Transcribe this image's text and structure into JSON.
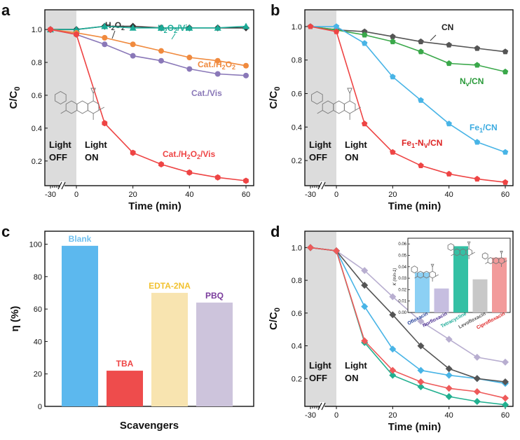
{
  "chart_data": [
    {
      "panel": "a",
      "type": "line",
      "xlabel": "Time (min)",
      "ylabel": "C/C0",
      "x_ticks": [
        "-30",
        "0",
        "20",
        "40",
        "60"
      ],
      "y_ticks": [
        "0.2",
        "0.4",
        "0.6",
        "0.8",
        "1.0"
      ],
      "ylim": [
        0.05,
        1.12
      ],
      "light_off": [
        "Light",
        "OFF"
      ],
      "light_on": [
        "Light",
        "ON"
      ],
      "x": [
        -30,
        0,
        10,
        20,
        30,
        40,
        50,
        60
      ],
      "series": [
        {
          "name": "H2O2",
          "label_main": "H",
          "label_sub": "2",
          "label_mid": "O",
          "label_sub2": "2",
          "label_tail": "",
          "color": "#333333",
          "marker": "diamond",
          "values": [
            1.0,
            1.0,
            1.02,
            1.02,
            1.01,
            1.01,
            1.01,
            1.01
          ]
        },
        {
          "name": "H2O2/Vis",
          "label_main": "H",
          "label_sub": "2",
          "label_mid": "O",
          "label_sub2": "2",
          "label_tail": "/Vis",
          "color": "#1aaa96",
          "marker": "triangle",
          "values": [
            1.0,
            1.0,
            1.02,
            1.01,
            1.01,
            1.01,
            1.01,
            1.02
          ]
        },
        {
          "name": "Cat./H2O2",
          "label_main": "Cat./H",
          "label_sub": "2",
          "label_mid": "O",
          "label_sub2": "2",
          "label_tail": "",
          "color": "#f08a3e",
          "marker": "circle",
          "values": [
            1.0,
            0.98,
            0.95,
            0.91,
            0.87,
            0.83,
            0.81,
            0.78
          ]
        },
        {
          "name": "Cat./Vis",
          "label_main": "Cat./Vis",
          "label_sub": "",
          "label_mid": "",
          "label_sub2": "",
          "label_tail": "",
          "color": "#8a78b8",
          "marker": "circle",
          "values": [
            1.0,
            0.97,
            0.91,
            0.84,
            0.81,
            0.76,
            0.73,
            0.72
          ]
        },
        {
          "name": "Cat./H2O2/Vis",
          "label_main": "Cat./H",
          "label_sub": "2",
          "label_mid": "O",
          "label_sub2": "2",
          "label_tail": "/Vis",
          "color": "#ee4444",
          "marker": "hexagon",
          "values": [
            1.0,
            0.97,
            0.43,
            0.25,
            0.18,
            0.13,
            0.1,
            0.08
          ]
        }
      ]
    },
    {
      "panel": "b",
      "type": "line",
      "xlabel": "Time (min)",
      "ylabel": "C/C0",
      "x_ticks": [
        "-30",
        "0",
        "20",
        "40",
        "60"
      ],
      "y_ticks": [
        "0.2",
        "0.4",
        "0.6",
        "0.8",
        "1.0"
      ],
      "ylim": [
        0.05,
        1.1
      ],
      "light_off": [
        "Light",
        "OFF"
      ],
      "light_on": [
        "Light",
        "ON"
      ],
      "x": [
        -30,
        0,
        10,
        20,
        30,
        40,
        50,
        60
      ],
      "series": [
        {
          "name": "CN",
          "label_main": "CN",
          "label_sub": "",
          "label_mid": "",
          "label_sub2": "",
          "label_tail": "",
          "color": "#555555",
          "marker": "pentagon",
          "values": [
            1.0,
            0.98,
            0.97,
            0.94,
            0.91,
            0.89,
            0.87,
            0.85
          ]
        },
        {
          "name": "NV/CN",
          "label_main": "N",
          "label_sub": "v",
          "label_mid": "/CN",
          "label_sub2": "",
          "label_tail": "",
          "color": "#3aa84a",
          "marker": "pentagon",
          "values": [
            1.0,
            0.98,
            0.95,
            0.91,
            0.85,
            0.78,
            0.77,
            0.73
          ]
        },
        {
          "name": "Fe1/CN",
          "label_main": "Fe",
          "label_sub": "1",
          "label_mid": "/CN",
          "label_sub2": "",
          "label_tail": "",
          "color": "#48b4e6",
          "marker": "pentagon",
          "values": [
            1.0,
            1.0,
            0.9,
            0.7,
            0.56,
            0.42,
            0.31,
            0.25
          ]
        },
        {
          "name": "Fe1-NV/CN",
          "label_main": "Fe",
          "label_sub": "1",
          "label_mid": "-N",
          "label_sub2": "V",
          "label_tail": "/CN",
          "color": "#ee4444",
          "marker": "pentagon",
          "values": [
            1.0,
            0.97,
            0.42,
            0.25,
            0.17,
            0.12,
            0.09,
            0.07
          ]
        }
      ]
    },
    {
      "panel": "c",
      "type": "bar",
      "xlabel": "Scavengers",
      "ylabel": "η (%)",
      "y_ticks": [
        "0",
        "20",
        "40",
        "60",
        "80",
        "100"
      ],
      "ylim": [
        0,
        108
      ],
      "categories": [
        "Blank",
        "TBA",
        "EDTA-2NA",
        "PBQ"
      ],
      "values": [
        99,
        22,
        70,
        64
      ],
      "colors": [
        "#5cb8ee",
        "#ee4c4c",
        "#f8e4b0",
        "#cdc4dc"
      ],
      "label_colors": [
        "#6ec0f0",
        "#ee4444",
        "#f2c230",
        "#7a3c9c"
      ]
    },
    {
      "panel": "d",
      "type": "line",
      "xlabel": "Time (min)",
      "ylabel": "C/C0",
      "x_ticks": [
        "-30",
        "0",
        "20",
        "40",
        "60"
      ],
      "y_ticks": [
        "0.2",
        "0.4",
        "0.6",
        "0.8",
        "1.0"
      ],
      "ylim": [
        0.03,
        1.1
      ],
      "light_off": [
        "Light",
        "OFF"
      ],
      "light_on": [
        "Light",
        "ON"
      ],
      "x": [
        -30,
        0,
        10,
        20,
        30,
        40,
        50,
        60
      ],
      "series": [
        {
          "name": "Ofloxacin",
          "color": "#48b4e6",
          "marker": "diamond",
          "values": [
            1.0,
            0.98,
            0.64,
            0.38,
            0.25,
            0.22,
            0.2,
            0.17
          ]
        },
        {
          "name": "Norfloxacin",
          "color": "#b8aed0",
          "marker": "diamond",
          "values": [
            1.0,
            0.98,
            0.86,
            0.7,
            0.55,
            0.44,
            0.33,
            0.3
          ]
        },
        {
          "name": "Tetracycline",
          "color": "#22b090",
          "marker": "diamond",
          "values": [
            1.0,
            0.98,
            0.42,
            0.22,
            0.15,
            0.09,
            0.06,
            0.04
          ]
        },
        {
          "name": "Levofloxacin",
          "color": "#555555",
          "marker": "diamond",
          "values": [
            1.0,
            0.98,
            0.77,
            0.59,
            0.4,
            0.26,
            0.2,
            0.18
          ]
        },
        {
          "name": "Ciprofloxacin",
          "color": "#ee5a5a",
          "marker": "diamond",
          "values": [
            1.0,
            0.98,
            0.43,
            0.25,
            0.18,
            0.14,
            0.12,
            0.08
          ]
        }
      ],
      "inset": {
        "type": "bar",
        "ylabel": "K (min-1)",
        "y_ticks": [
          "0.00",
          "0.01",
          "0.02",
          "0.03",
          "0.04",
          "0.05",
          "0.06"
        ],
        "ylim": [
          0,
          0.065
        ],
        "categories": [
          "Ofloxacin",
          "Norfloxacin",
          "Tetracycline",
          "Levofloxacin",
          "Ciprofloxacin"
        ],
        "values": [
          0.035,
          0.021,
          0.058,
          0.029,
          0.048
        ],
        "colors": [
          "#8cd0f4",
          "#c6bee0",
          "#34c0a4",
          "#c8c8c8",
          "#f29a9a"
        ],
        "label_colors": [
          "#1f3c98",
          "#4a2c90",
          "#1aaa96",
          "#555555",
          "#dd2222"
        ]
      }
    }
  ]
}
